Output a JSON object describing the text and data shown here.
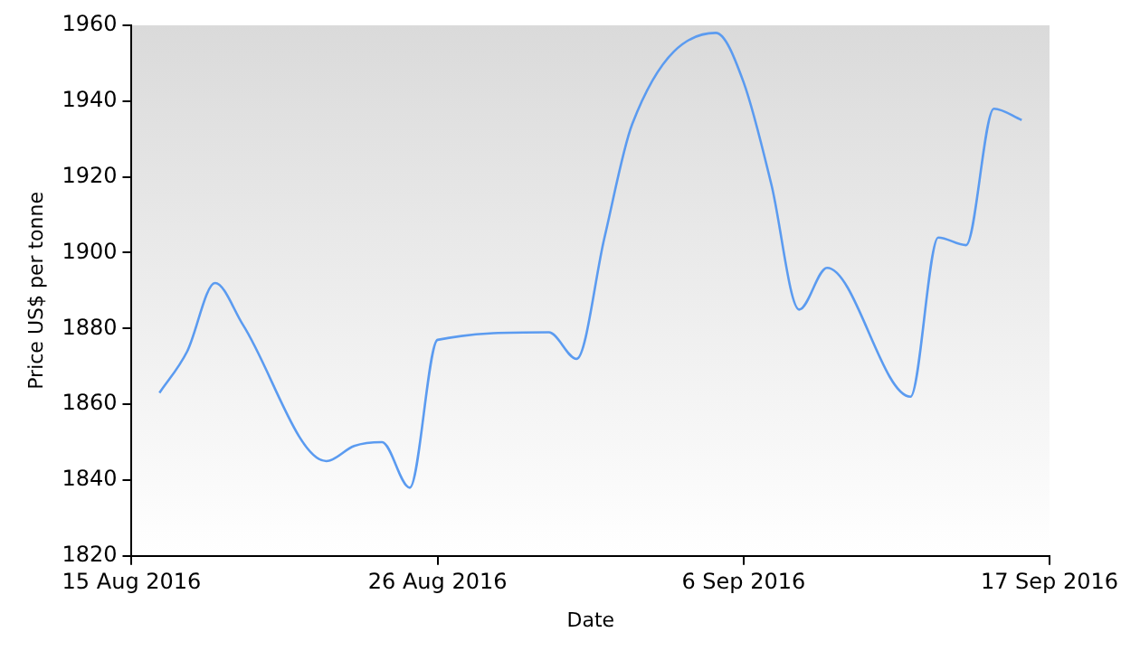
{
  "chart_data": {
    "type": "line",
    "xlabel": "Date",
    "ylabel": "Price US$ per tonne",
    "x": [
      "2016-08-16",
      "2016-08-17",
      "2016-08-18",
      "2016-08-19",
      "2016-08-22",
      "2016-08-23",
      "2016-08-24",
      "2016-08-25",
      "2016-08-26",
      "2016-08-30",
      "2016-08-31",
      "2016-09-01",
      "2016-09-02",
      "2016-09-05",
      "2016-09-06",
      "2016-09-07",
      "2016-09-08",
      "2016-09-09",
      "2016-09-12",
      "2016-09-13",
      "2016-09-14",
      "2016-09-15",
      "2016-09-16"
    ],
    "series": [
      {
        "color": "#5b9bf0",
        "values": [
          1863,
          1874,
          1892,
          1881,
          1845,
          1849,
          1850,
          1838,
          1877,
          1879,
          1872,
          1904,
          1934,
          1958,
          1945,
          1918,
          1885,
          1896,
          1862,
          1904,
          1902,
          1938,
          1935
        ]
      }
    ],
    "xlim": [
      "2016-08-15",
      "2016-09-17"
    ],
    "xticks": [
      {
        "value": "2016-08-15",
        "label": "15 Aug 2016"
      },
      {
        "value": "2016-08-26",
        "label": "26 Aug 2016"
      },
      {
        "value": "2016-09-06",
        "label": "6 Sep 2016"
      },
      {
        "value": "2016-09-17",
        "label": "17 Sep 2016"
      }
    ],
    "ylim": [
      1820,
      1960
    ],
    "yticks": [
      1820,
      1840,
      1860,
      1880,
      1900,
      1920,
      1940,
      1960
    ],
    "grid": false,
    "legend": false,
    "marker": "none",
    "line_style": "solid"
  }
}
